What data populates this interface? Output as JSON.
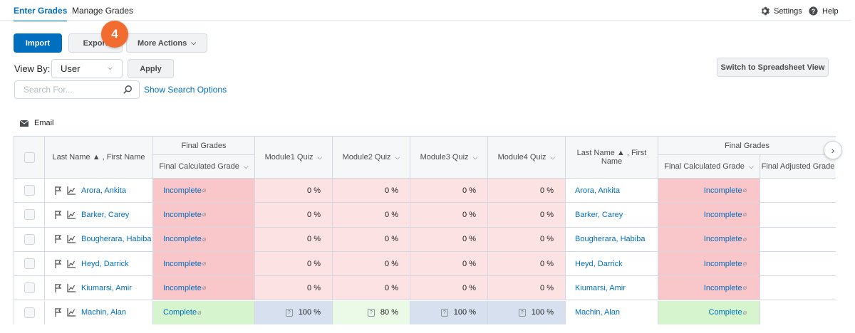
{
  "tabs": [
    "Enter Grades",
    "Manage Grades"
  ],
  "header": {
    "settings": "Settings",
    "help": "Help"
  },
  "toolbar": {
    "import": "Import",
    "export": "Export",
    "more_actions": "More Actions",
    "badge": "4",
    "view_by_label": "View By:",
    "view_by_value": "User",
    "apply": "Apply",
    "switch_view": "Switch to Spreadsheet View",
    "search_placeholder": "Search For...",
    "show_search_options": "Show Search Options",
    "email": "Email"
  },
  "table": {
    "group_header_1": "Final Grades",
    "group_header_2": "Final Grades",
    "col_name": "Last Name ▲ , First Name",
    "col_final_calc": "Final Calculated Grade",
    "col_q1": "Module1 Quiz",
    "col_q2": "Module2 Quiz",
    "col_q3": "Module3 Quiz",
    "col_q4": "Module4 Quiz",
    "col_name_2": "Last Name ▲ , First Name",
    "col_final_calc_2": "Final Calculated Grade",
    "col_final_adj": "Final Adjusted Grade",
    "rows": [
      {
        "name": "Arora, Ankita",
        "grade": "Incomplete",
        "q1": "0 %",
        "q2": "0 %",
        "q3": "0 %",
        "q4": "0 %"
      },
      {
        "name": "Barker, Carey",
        "grade": "Incomplete",
        "q1": "0 %",
        "q2": "0 %",
        "q3": "0 %",
        "q4": "0 %"
      },
      {
        "name": "Bougherara, Habiba",
        "grade": "Incomplete",
        "q1": "0 %",
        "q2": "0 %",
        "q3": "0 %",
        "q4": "0 %"
      },
      {
        "name": "Heyd, Darrick",
        "grade": "Incomplete",
        "q1": "0 %",
        "q2": "0 %",
        "q3": "0 %",
        "q4": "0 %"
      },
      {
        "name": "Kiumarsi, Amir",
        "grade": "Incomplete",
        "q1": "0 %",
        "q2": "0 %",
        "q3": "0 %",
        "q4": "0 %"
      },
      {
        "name": "Machin, Alan",
        "grade": "Complete",
        "q1": "100 %",
        "q2": "80 %",
        "q3": "100 %",
        "q4": "100 %"
      }
    ]
  }
}
